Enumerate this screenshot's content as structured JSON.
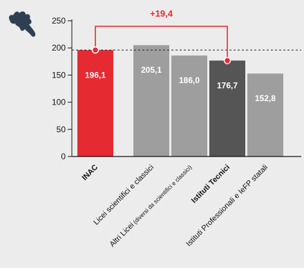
{
  "chart_data": {
    "type": "bar",
    "categories": [
      {
        "label": "INAC",
        "color": "#e52a32",
        "emphasis": true
      },
      {
        "label": "Licei scientifici e classici",
        "color": "#9e9e9e",
        "emphasis": false
      },
      {
        "label": "Altri Licei",
        "sub_label": "(diversi da scientifici e classici)",
        "color": "#9e9e9e",
        "emphasis": false
      },
      {
        "label": "Istituti Tecnici",
        "color": "#555555",
        "emphasis": true
      },
      {
        "label": "Istituti Professionali e IeFP statali",
        "color": "#9e9e9e",
        "emphasis": false
      }
    ],
    "values": [
      196.1,
      205.1,
      186.0,
      176.7,
      152.8
    ],
    "value_labels": [
      "196,1",
      "205,1",
      "186,0",
      "176,7",
      "152,8"
    ],
    "ylim": [
      0,
      250
    ],
    "yticks": [
      {
        "value": 0,
        "label": "0"
      },
      {
        "value": 50,
        "label": "50"
      },
      {
        "value": 100,
        "label": "100"
      },
      {
        "value": 150,
        "label": "150"
      },
      {
        "value": 200,
        "label": "200"
      },
      {
        "value": 250,
        "label": "250"
      }
    ],
    "reference_line": 196.1,
    "difference": {
      "label": "+19,4",
      "from_index": 0,
      "to_index": 3,
      "color": "#e52a32"
    },
    "grid": false
  },
  "icon": {
    "name": "lazio-region-icon",
    "color": "#2f3f52"
  }
}
